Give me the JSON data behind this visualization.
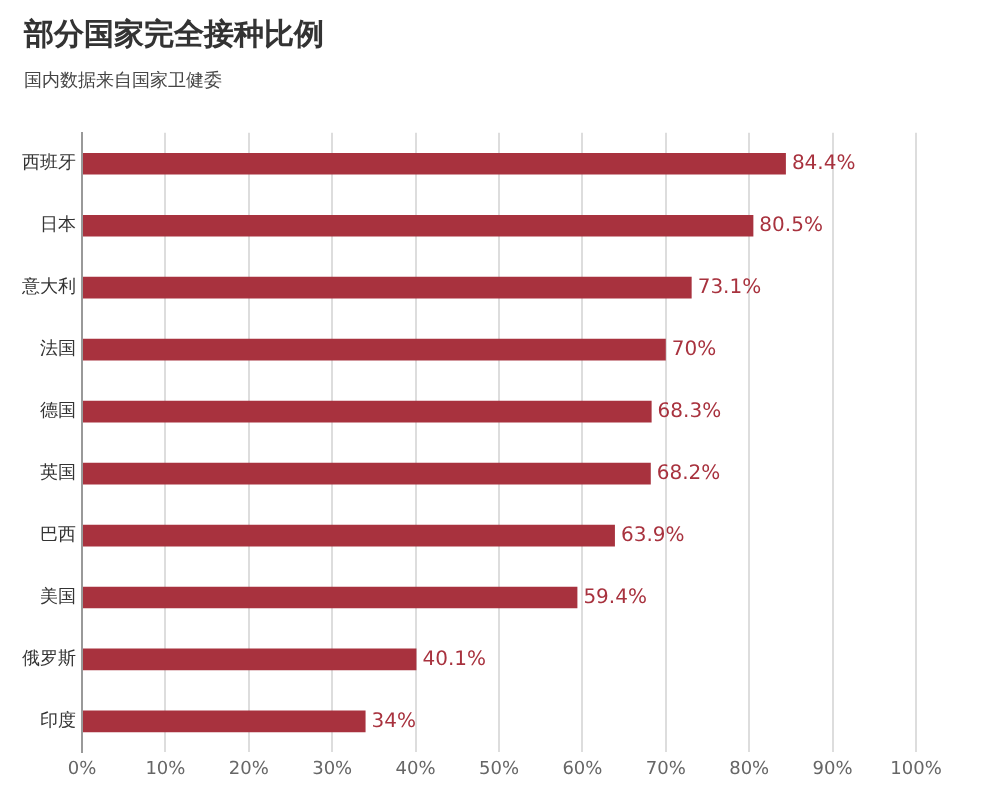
{
  "chart_data": {
    "type": "bar",
    "orientation": "horizontal",
    "title": "部分国家完全接种比例",
    "subtitle": "国内数据来自国家卫健委",
    "categories": [
      "西班牙",
      "日本",
      "意大利",
      "法国",
      "德国",
      "英国",
      "巴西",
      "美国",
      "俄罗斯",
      "印度"
    ],
    "values": [
      84.4,
      80.5,
      73.1,
      70,
      68.3,
      68.2,
      63.9,
      59.4,
      40.1,
      34
    ],
    "value_labels": [
      "84.4%",
      "80.5%",
      "73.1%",
      "70%",
      "68.3%",
      "68.2%",
      "63.9%",
      "59.4%",
      "40.1%",
      "34%"
    ],
    "color": "#a8323e",
    "xlim": [
      0,
      100
    ],
    "xticks": [
      {
        "value": 0,
        "label": "0%"
      },
      {
        "value": 10,
        "label": "10%"
      },
      {
        "value": 20,
        "label": "20%"
      },
      {
        "value": 30,
        "label": "30%"
      },
      {
        "value": 40,
        "label": "40%"
      },
      {
        "value": 50,
        "label": "50%"
      },
      {
        "value": 60,
        "label": "60%"
      },
      {
        "value": 70,
        "label": "70%"
      },
      {
        "value": 80,
        "label": "80%"
      },
      {
        "value": 90,
        "label": "90%"
      },
      {
        "value": 100,
        "label": "100%"
      }
    ],
    "grid": "x",
    "legend": false
  }
}
